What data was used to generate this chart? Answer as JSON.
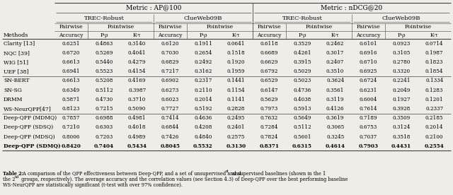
{
  "title_metric1": "Metric : AP@100",
  "title_metric2": "Metric : nDCG@20",
  "methods": [
    "Clarity [13]",
    "NQC [39]",
    "WIG [51]",
    "UEF [38]",
    "SN-BERT",
    "SN-SG",
    "DRMM",
    "WS-NeurQPP[47]",
    "Deep-QPP (MDMQ)",
    "Deep-QPP (SDSQ)",
    "Deep-QPP (MDSQ)",
    "Deep-QPP (SDMQ)"
  ],
  "bold_rows": [
    11
  ],
  "group_separators": [
    4,
    8
  ],
  "data": [
    [
      0.6251,
      0.4863,
      0.314,
      0.612,
      0.1911,
      0.0641,
      0.6118,
      0.3529,
      0.2462,
      0.6101,
      0.0923,
      0.0714
    ],
    [
      0.672,
      0.5269,
      0.4041,
      0.703,
      0.2654,
      0.1518,
      0.6689,
      0.4261,
      0.3017,
      0.6916,
      0.3105,
      0.1987
    ],
    [
      0.6613,
      0.544,
      0.4279,
      0.6829,
      0.2492,
      0.192,
      0.6629,
      0.3915,
      0.2407,
      0.671,
      0.278,
      0.1823
    ],
    [
      0.6941,
      0.5523,
      0.4154,
      0.7217,
      0.3162,
      0.1959,
      0.6792,
      0.5029,
      0.351,
      0.6925,
      0.332,
      0.1854
    ],
    [
      0.6613,
      0.5208,
      0.4169,
      0.6902,
      0.2317,
      0.1441,
      0.6529,
      0.5023,
      0.3624,
      0.6724,
      0.2241,
      0.1334
    ],
    [
      0.6349,
      0.5112,
      0.3987,
      0.6273,
      0.211,
      0.1154,
      0.6147,
      0.4736,
      0.3561,
      0.6231,
      0.2049,
      0.1283
    ],
    [
      0.5871,
      0.473,
      0.371,
      0.6023,
      0.2014,
      0.1141,
      0.5629,
      0.4038,
      0.3119,
      0.6004,
      0.1927,
      0.1201
    ],
    [
      0.8123,
      0.7215,
      0.509,
      0.7727,
      0.5192,
      0.2828,
      0.7973,
      0.5913,
      0.4126,
      0.7614,
      0.3928,
      0.2337
    ],
    [
      0.7857,
      0.6988,
      0.4981,
      0.7414,
      0.4636,
      0.2495,
      0.7632,
      0.5649,
      0.3619,
      0.7189,
      0.3509,
      0.2185
    ],
    [
      0.721,
      0.6303,
      0.4018,
      0.6844,
      0.4208,
      0.2401,
      0.7284,
      0.5112,
      0.3065,
      0.6753,
      0.3124,
      0.2014
    ],
    [
      0.8006,
      0.7203,
      0.4989,
      0.7426,
      0.484,
      0.2575,
      0.7824,
      0.5601,
      0.3245,
      0.7037,
      0.3518,
      0.21
    ],
    [
      0.842,
      0.7404,
      0.5434,
      0.8045,
      0.5532,
      0.313,
      0.8371,
      0.6315,
      0.4614,
      0.7903,
      0.4431,
      0.2554
    ]
  ],
  "caption_bold": "Table 2:",
  "caption_normal": " A comparison of the QPP effectiveness between Deep-QPP, and a set of unsupervised and supervised baselines (shown in the 1",
  "caption_sup1": "st",
  "caption_normal2": " and",
  "caption_line2": "the 2",
  "caption_sup2": "nd",
  "caption_line2b": " groups, respectively). The average accuracy and the correlation values (see Section 4.3) of Deep-QPP over the best performing baseline",
  "caption_line3": "WS-NeurQPP are statistically significant (t-test with over 97% confidence).",
  "bg_color": "#f0ede8",
  "line_color": "#444444"
}
